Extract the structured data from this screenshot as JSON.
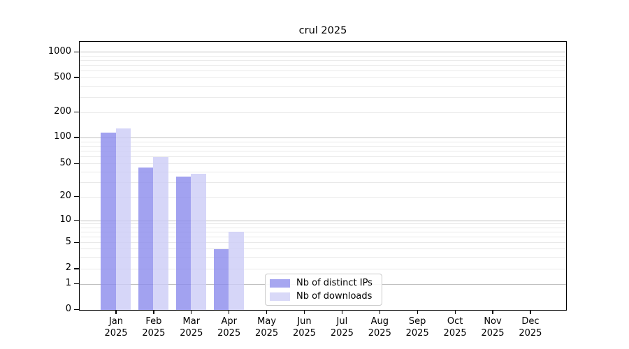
{
  "chart_data": {
    "type": "bar",
    "title": "crul 2025",
    "categories": [
      "Jan 2025",
      "Feb 2025",
      "Mar 2025",
      "Apr 2025",
      "May 2025",
      "Jun 2025",
      "Jul 2025",
      "Aug 2025",
      "Sep 2025",
      "Oct 2025",
      "Nov 2025",
      "Dec 2025"
    ],
    "series": [
      {
        "name": "Nb of distinct IPs",
        "color": "#8b8bec",
        "legend_color": "#a6a6f0",
        "values": [
          115,
          45,
          35,
          4,
          0,
          0,
          0,
          0,
          0,
          0,
          0,
          0
        ]
      },
      {
        "name": "Nb of downloads",
        "color": "#ccccf6",
        "legend_color": "#d9d9f8",
        "values": [
          130,
          60,
          38,
          7,
          0,
          0,
          0,
          0,
          0,
          0,
          0,
          0
        ]
      }
    ],
    "y_axis": {
      "scale": "symlog",
      "ticks": [
        0,
        1,
        2,
        5,
        10,
        20,
        50,
        100,
        200,
        500,
        1000
      ],
      "ylim": [
        0,
        1300
      ]
    },
    "xlabel": "",
    "ylabel": "",
    "grid": {
      "enabled": true,
      "major_color": "#c0c0c0",
      "minor_color": "#e9e9e9"
    },
    "legend": {
      "position": "lower-center-left",
      "entries": [
        "Nb of distinct IPs",
        "Nb of downloads"
      ]
    }
  }
}
